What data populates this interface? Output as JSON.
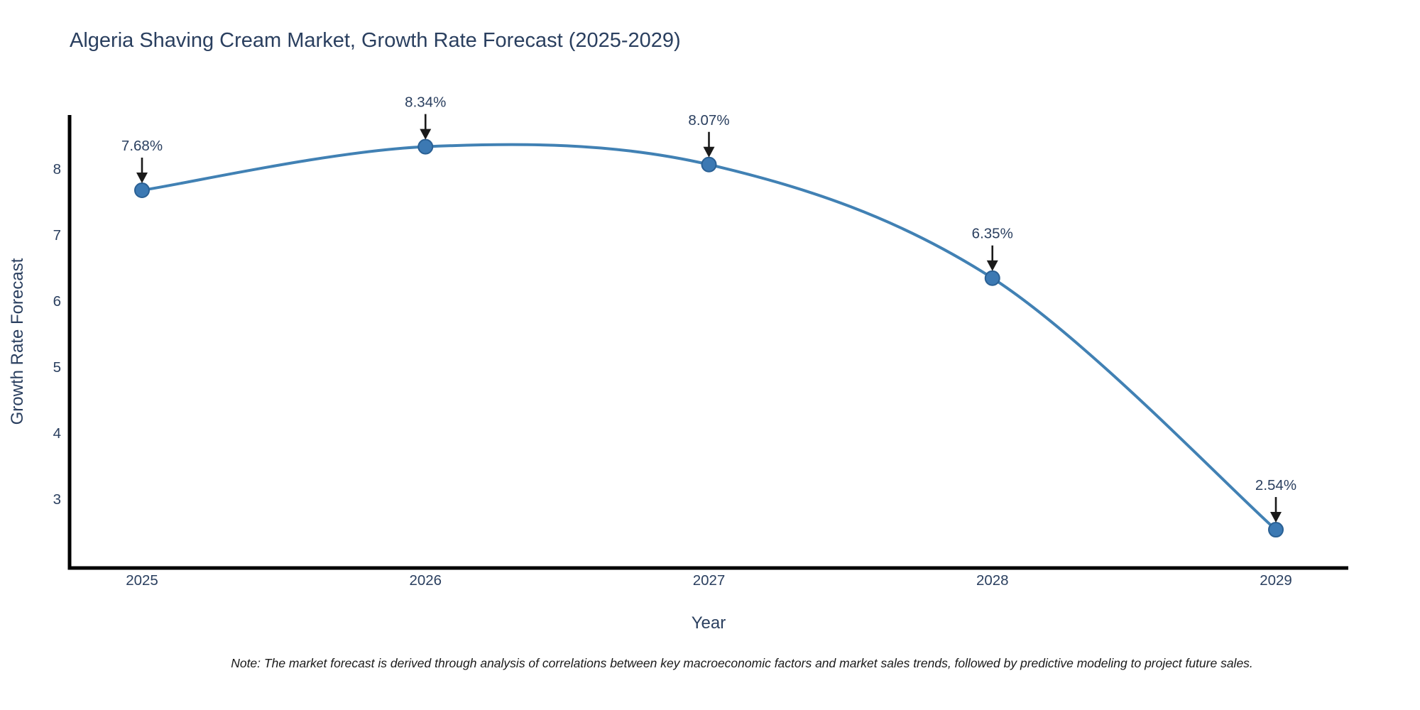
{
  "chart_data": {
    "type": "line",
    "title": "Algeria Shaving Cream Market, Growth Rate Forecast (2025-2029)",
    "x": [
      2025,
      2026,
      2027,
      2028,
      2029
    ],
    "values": [
      7.68,
      8.34,
      8.07,
      6.35,
      2.54
    ],
    "point_labels": [
      "7.68%",
      "8.34%",
      "8.07%",
      "6.35%",
      "2.54%"
    ],
    "xlabel": "Year",
    "ylabel": "Growth Rate Forecast",
    "yticks": [
      3,
      4,
      5,
      6,
      7,
      8
    ],
    "ylim": [
      1.96,
      8.82
    ],
    "line_shape": "spline",
    "grid": false,
    "legend": "none",
    "footnote": "Note: The market forecast is derived through analysis of correlations between key macroeconomic factors and market sales trends, followed by predictive modeling to project future sales.",
    "colors": {
      "line": "#4181b4",
      "marker_fill": "#3c79b3",
      "marker_stroke": "#2a6094",
      "axis_text": "#2a3f5f",
      "spine": "#000000",
      "arrow": "#1a1a1a",
      "note_text": "#1a1a1a"
    }
  }
}
